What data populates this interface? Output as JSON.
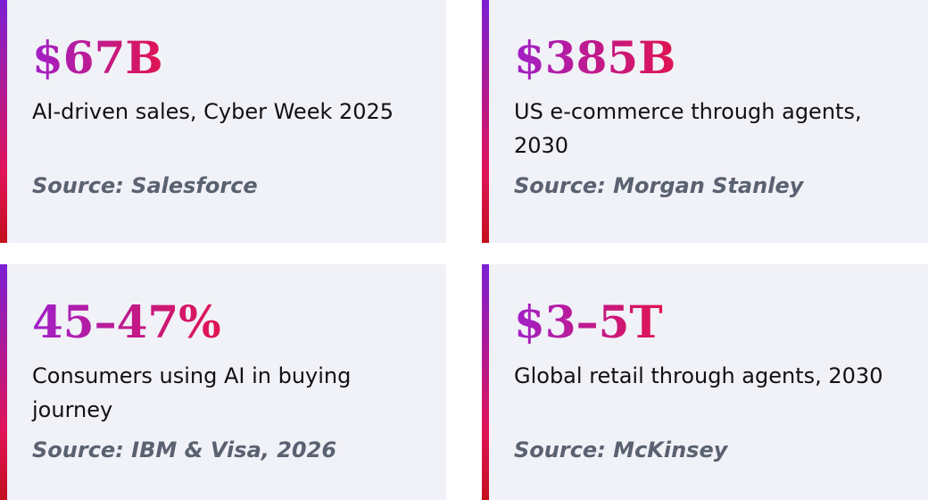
{
  "cards": [
    {
      "stat": "$67B",
      "description": "AI-driven sales, Cyber Week 2025",
      "source": "Source: Salesforce"
    },
    {
      "stat": "$385B",
      "description": "US e-commerce through agents, 2030",
      "source": "Source: Morgan Stanley"
    },
    {
      "stat": "45–47%",
      "description": "Consumers using AI in buying journey",
      "source": "Source: IBM & Visa, 2026"
    },
    {
      "stat": "$3–5T",
      "description": "Global retail through agents, 2030",
      "source": "Source: McKinsey"
    }
  ]
}
